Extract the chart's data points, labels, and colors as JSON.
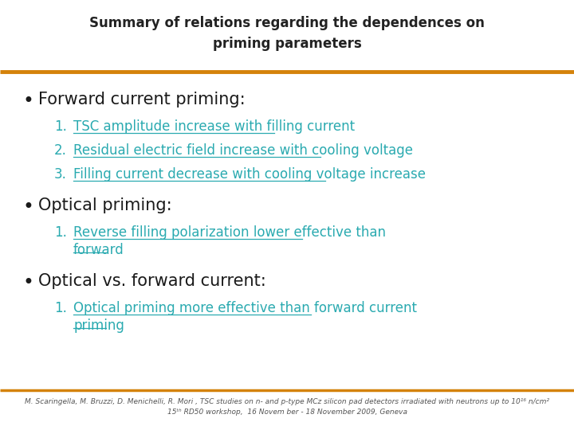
{
  "title": "Summary of relations regarding the dependences on\npriming parameters",
  "title_fontsize": 12,
  "background_color": "#ffffff",
  "orange_line_color": "#D4820A",
  "bullet_color": "#1a1a1a",
  "bullet_fontsize": 15,
  "subitem_color": "#2AAAB0",
  "subitem_fontsize": 12,
  "footer_color": "#555555",
  "footer_fontsize": 6.5,
  "bullet1_text": "Forward current priming:",
  "bullet1_items": [
    "TSC amplitude increase with filling current",
    "Residual electric field increase with cooling voltage",
    "Filling current decrease with cooling voltage increase"
  ],
  "bullet2_text": "Optical priming:",
  "bullet2_items": [
    "Reverse filling polarization lower effective than\nforward"
  ],
  "bullet3_text": "Optical vs. forward current:",
  "bullet3_items": [
    "Optical priming more effective than forward current\npriming"
  ],
  "footer_line1": "M. Scaringella, M. Bruzzi, D. Menichelli, R. Mori , TSC studies on n- and p-type MCz silicon pad detectors irradiated with neutrons up to 10¹⁶ n/cm²",
  "footer_line2": "15ᵗʰ RD50 workshop,  16 Novem ber - 18 November 2009, Geneva"
}
